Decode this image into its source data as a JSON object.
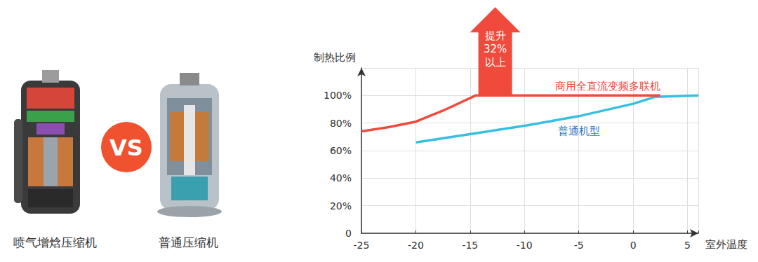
{
  "comparison": {
    "left_label": "喷气增焓压缩机",
    "vs": "VS",
    "right_label": "普通压缩机"
  },
  "chart_data": {
    "type": "line",
    "ylabel": "制热比例",
    "xlabel": "室外温度",
    "xlim": [
      -25,
      6
    ],
    "ylim": [
      0,
      120
    ],
    "xticks": [
      -25,
      -20,
      -15,
      -10,
      -5,
      0,
      5
    ],
    "yticks": [
      0,
      {
        "value": 20,
        "label": "20%"
      },
      {
        "value": 40,
        "label": "40%"
      },
      {
        "value": 60,
        "label": "60%"
      },
      {
        "value": 80,
        "label": "80%"
      },
      {
        "value": 100,
        "label": "100%"
      }
    ],
    "grid": true,
    "series": [
      {
        "name": "商用全直流变频多联机",
        "color": "#f04a3c",
        "x": [
          -25,
          -22.5,
          -20,
          -17.5,
          -14.5,
          2.5
        ],
        "values": [
          74,
          77,
          81,
          89,
          100,
          100
        ]
      },
      {
        "name": "普通机型",
        "color": "#36bfe0",
        "x": [
          -20,
          -15,
          -10,
          -5,
          0,
          2,
          6
        ],
        "values": [
          66,
          72,
          78,
          85,
          94,
          99,
          100
        ]
      }
    ],
    "annotations": [
      {
        "text": [
          "提升",
          "32%",
          "以上"
        ],
        "color": "#f04a3c"
      }
    ]
  }
}
